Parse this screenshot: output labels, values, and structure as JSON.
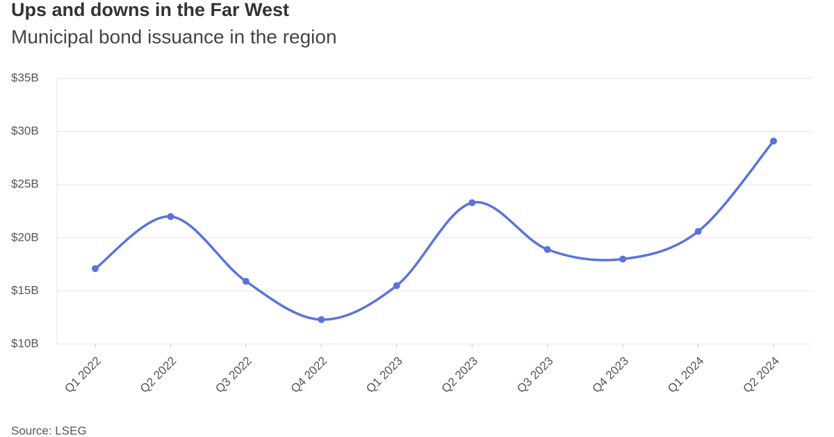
{
  "chart_data": {
    "type": "line",
    "title": "Ups and downs in the Far West",
    "subtitle": "Municipal bond issuance in the region",
    "source": "Source: LSEG",
    "categories": [
      "Q1 2022",
      "Q2 2022",
      "Q3 2022",
      "Q4 2022",
      "Q1 2023",
      "Q2 2023",
      "Q3 2023",
      "Q4 2023",
      "Q1 2024",
      "Q2 2024"
    ],
    "values": [
      17.1,
      22.0,
      15.9,
      12.3,
      15.5,
      23.3,
      18.9,
      18.0,
      20.6,
      29.1
    ],
    "color": "#5a73db",
    "ylim": [
      10,
      35
    ],
    "yticks": [
      {
        "value": 10,
        "label": "$10B"
      },
      {
        "value": 15,
        "label": "$15B"
      },
      {
        "value": 20,
        "label": "$20B"
      },
      {
        "value": 25,
        "label": "$25B"
      },
      {
        "value": 30,
        "label": "$30B"
      },
      {
        "value": 35,
        "label": "$35B"
      }
    ],
    "grid": true
  }
}
